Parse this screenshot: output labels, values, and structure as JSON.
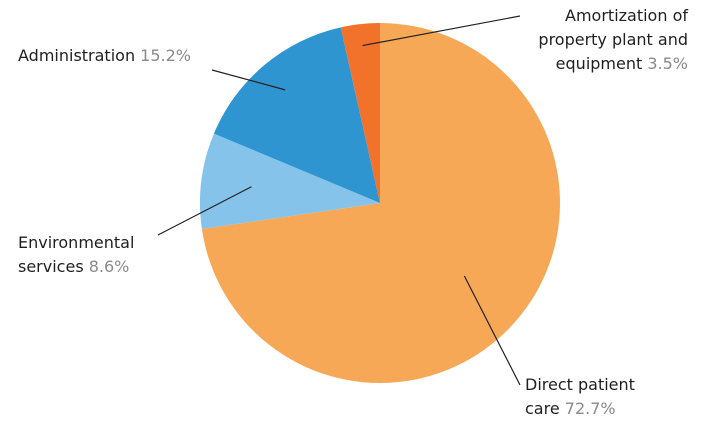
{
  "chart_data": {
    "type": "pie",
    "title": "",
    "start_angle_deg": 0,
    "direction": "clockwise",
    "slices": [
      {
        "name": "Direct patient care",
        "label_lines": [
          "Direct patient",
          "care"
        ],
        "value": 72.7,
        "value_label": "72.7%",
        "color": "#F7A856",
        "label_pos": "bottom-right"
      },
      {
        "name": "Environmental services",
        "label_lines": [
          "Environmental",
          "services"
        ],
        "value": 8.6,
        "value_label": "8.6%",
        "color": "#86C3EA",
        "label_pos": "left"
      },
      {
        "name": "Administration",
        "label_lines": [
          "Administration"
        ],
        "value": 15.2,
        "value_label": "15.2%",
        "color": "#2E95D1",
        "label_pos": "top-left"
      },
      {
        "name": "Amortization of property plant and equipment",
        "label_lines": [
          "Amortization of",
          "property plant and",
          "equipment"
        ],
        "value": 3.5,
        "value_label": "3.5%",
        "color": "#F2712B",
        "label_pos": "top-right"
      }
    ]
  }
}
